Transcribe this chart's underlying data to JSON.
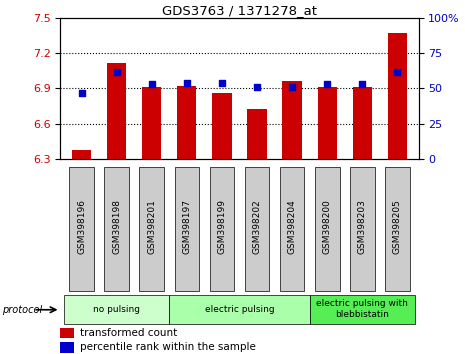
{
  "title": "GDS3763 / 1371278_at",
  "samples": [
    "GSM398196",
    "GSM398198",
    "GSM398201",
    "GSM398197",
    "GSM398199",
    "GSM398202",
    "GSM398204",
    "GSM398200",
    "GSM398203",
    "GSM398205"
  ],
  "bar_values": [
    6.38,
    7.12,
    6.91,
    6.92,
    6.86,
    6.73,
    6.96,
    6.91,
    6.91,
    7.37
  ],
  "percentile_values": [
    47,
    62,
    53,
    54,
    54,
    51,
    51,
    53,
    53,
    62
  ],
  "ylim_left": [
    6.3,
    7.5
  ],
  "ylim_right": [
    0,
    100
  ],
  "yticks_left": [
    6.3,
    6.6,
    6.9,
    7.2,
    7.5
  ],
  "yticks_right": [
    0,
    25,
    50,
    75,
    100
  ],
  "bar_color": "#cc0000",
  "dot_color": "#0000cc",
  "group_defs": [
    {
      "label": "no pulsing",
      "start": 0,
      "end": 2,
      "color": "#ccffcc"
    },
    {
      "label": "electric pulsing",
      "start": 3,
      "end": 6,
      "color": "#aaffaa"
    },
    {
      "label": "electric pulsing with\nblebbistatin",
      "start": 7,
      "end": 9,
      "color": "#55ee55"
    }
  ],
  "protocol_label": "protocol",
  "legend_items": [
    {
      "label": "transformed count",
      "color": "#cc0000"
    },
    {
      "label": "percentile rank within the sample",
      "color": "#0000cc"
    }
  ],
  "tick_label_color_left": "#cc0000",
  "tick_label_color_right": "#0000cc",
  "xtick_bg": "#cccccc"
}
